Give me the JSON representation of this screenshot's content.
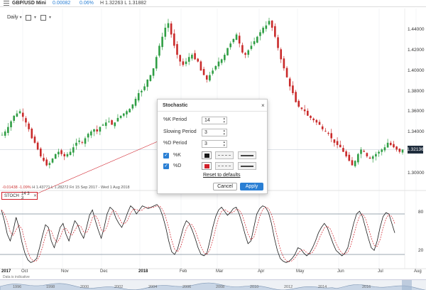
{
  "header": {
    "symbol": "GBP/USD Mini",
    "change": "0.00082",
    "change_pct": "0.06%",
    "high_low": "H 1.32263  L 1.31882"
  },
  "toolbar": {
    "interval": "Daily",
    "chart_type_icon": "candle-chart-icon",
    "indicator_icon": "indicator-icon"
  },
  "price_axis": {
    "labels": [
      "1.44000",
      "1.42000",
      "1.40000",
      "1.38000",
      "1.36000",
      "1.34000",
      "1.32000",
      "1.30000"
    ],
    "current_price": "1.32136"
  },
  "info_bar": {
    "change": "-0.01438",
    "change_pct": "-1.09%",
    "high": "H 1.43771",
    "low": "L 1.28272",
    "range": "Fri 15 Sep 2017 - Wed 1 Aug 2018"
  },
  "indicator_tag": {
    "name": "STOCH",
    "params": "14  3  3",
    "close_icon": "close-icon"
  },
  "stoch_axis": {
    "labels": [
      "80",
      "20"
    ]
  },
  "time_axis": {
    "labels": [
      "2017",
      "Oct",
      "Nov",
      "Dec",
      "2018",
      "Feb",
      "Mar",
      "Apr",
      "May",
      "Jun",
      "Jul",
      "Aug"
    ]
  },
  "footnote": "Data is indicative",
  "navigator": {
    "years": [
      "1996",
      "1998",
      "2000",
      "2002",
      "2004",
      "2006",
      "2008",
      "2010",
      "2012",
      "2014",
      "2016"
    ]
  },
  "dialog": {
    "title": "Stochastic",
    "k_period_label": "%K Period",
    "k_period_value": "14",
    "slowing_label": "Slowing Period",
    "slowing_value": "3",
    "d_period_label": "%D Period",
    "d_period_value": "3",
    "k_line_label": "%K",
    "d_line_label": "%D",
    "k_color": "#1a1a1a",
    "d_color": "#d0202a",
    "reset_label": "Reset to defaults",
    "cancel_label": "Cancel",
    "apply_label": "Apply"
  },
  "chart_data": {
    "type": "candlestick",
    "instrument": "GBP/USD Mini",
    "ylim": [
      1.29,
      1.445
    ],
    "series": [
      {
        "name": "%K"
      },
      {
        "name": "%D"
      }
    ],
    "price_path": [
      1.333,
      1.336,
      1.34,
      1.345,
      1.35,
      1.352,
      1.354,
      1.349,
      1.344,
      1.338,
      1.33,
      1.326,
      1.32,
      1.314,
      1.31,
      1.306,
      1.308,
      1.312,
      1.316,
      1.318,
      1.316,
      1.314,
      1.316,
      1.318,
      1.322,
      1.326,
      1.328,
      1.326,
      1.33,
      1.334,
      1.336,
      1.338,
      1.336,
      1.34,
      1.342,
      1.344,
      1.345,
      1.342,
      1.344,
      1.348,
      1.35,
      1.352,
      1.354,
      1.356,
      1.36,
      1.365,
      1.37,
      1.372,
      1.376,
      1.382,
      1.386,
      1.392,
      1.402,
      1.412,
      1.42,
      1.428,
      1.432,
      1.422,
      1.412,
      1.404,
      1.398,
      1.395,
      1.398,
      1.402,
      1.404,
      1.4,
      1.398,
      1.39,
      1.386,
      1.382,
      1.386,
      1.39,
      1.394,
      1.398,
      1.4,
      1.404,
      1.41,
      1.414,
      1.418,
      1.422,
      1.414,
      1.406,
      1.404,
      1.408,
      1.412,
      1.416,
      1.42,
      1.424,
      1.428,
      1.43,
      1.434,
      1.428,
      1.42,
      1.41,
      1.4,
      1.392,
      1.384,
      1.376,
      1.37,
      1.362,
      1.358,
      1.356,
      1.354,
      1.35,
      1.348,
      1.346,
      1.344,
      1.342,
      1.338,
      1.336,
      1.334,
      1.33,
      1.326,
      1.324,
      1.322,
      1.318,
      1.314,
      1.31,
      1.306,
      1.31,
      1.316,
      1.32,
      1.318,
      1.314,
      1.312,
      1.314,
      1.316,
      1.318,
      1.32,
      1.322,
      1.326,
      1.324,
      1.322,
      1.32,
      1.318,
      1.32
    ],
    "stoch_k": [
      86,
      70,
      50,
      40,
      55,
      75,
      60,
      38,
      22,
      12,
      8,
      10,
      14,
      30,
      48,
      64,
      60,
      40,
      30,
      44,
      60,
      66,
      50,
      40,
      56,
      70,
      64,
      52,
      44,
      60,
      78,
      86,
      70,
      56,
      44,
      60,
      80,
      90,
      86,
      74,
      66,
      60,
      70,
      82,
      92,
      88,
      80,
      86,
      92,
      90,
      88,
      90,
      92,
      94,
      88,
      76,
      60,
      40,
      24,
      20,
      28,
      44,
      60,
      70,
      66,
      56,
      44,
      30,
      20,
      18,
      22,
      40,
      60,
      76,
      86,
      90,
      84,
      78,
      82,
      88,
      90,
      80,
      66,
      50,
      36,
      40,
      60,
      80,
      88,
      92,
      90,
      82,
      66,
      44,
      26,
      14,
      10,
      8,
      10,
      14,
      20,
      30,
      28,
      22,
      18,
      22,
      30,
      40,
      52,
      60,
      66,
      60,
      48,
      36,
      26,
      22,
      18,
      22,
      30,
      48,
      66,
      80,
      84,
      76,
      60,
      44,
      30,
      26,
      40,
      60,
      76,
      82,
      80,
      66,
      52
    ],
    "stoch_d_offset": 2
  }
}
